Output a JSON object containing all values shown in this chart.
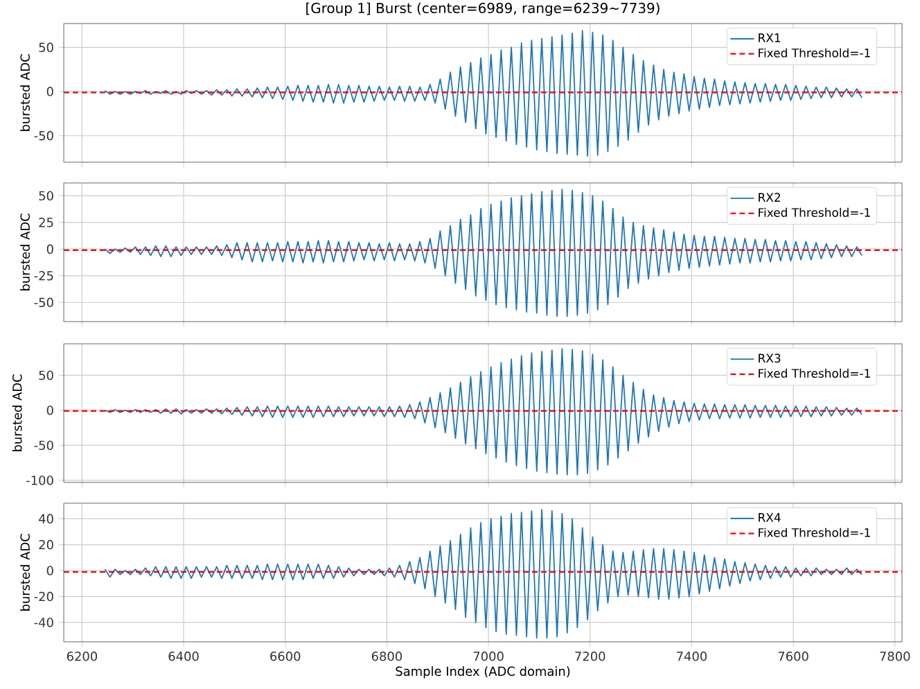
{
  "chart_data": [
    {
      "type": "line",
      "title": "[Group 1] Burst (center=6989, range=6239~7739)",
      "ylabel": "bursted ADC",
      "xlim": [
        6164,
        7814
      ],
      "ylim": [
        -80,
        77
      ],
      "xticks": [
        6200,
        6400,
        6600,
        6800,
        7000,
        7200,
        7400,
        7600,
        7800
      ],
      "yticks": [
        -50,
        0,
        50
      ],
      "tick_labels": "y",
      "grid": true,
      "legend": "top right",
      "ref_lines": [
        {
          "axis": "y",
          "value": -1,
          "label": "Fixed Threshold=-1",
          "color": "#ff0000",
          "line_style": "dashed"
        }
      ],
      "series": [
        {
          "name": "RX1",
          "color": "#1f77b4",
          "x": [
            6245,
            6255,
            6265,
            6275,
            6285,
            6295,
            6305,
            6315,
            6325,
            6335,
            6345,
            6355,
            6365,
            6375,
            6385,
            6395,
            6405,
            6415,
            6425,
            6435,
            6445,
            6455,
            6465,
            6475,
            6485,
            6495,
            6505,
            6515,
            6525,
            6535,
            6545,
            6555,
            6565,
            6575,
            6585,
            6595,
            6605,
            6615,
            6625,
            6635,
            6645,
            6655,
            6665,
            6675,
            6685,
            6695,
            6705,
            6715,
            6725,
            6735,
            6745,
            6755,
            6765,
            6775,
            6785,
            6795,
            6805,
            6815,
            6825,
            6835,
            6845,
            6855,
            6865,
            6875,
            6885,
            6895,
            6905,
            6915,
            6925,
            6935,
            6945,
            6955,
            6965,
            6975,
            6985,
            6995,
            7005,
            7015,
            7025,
            7035,
            7045,
            7055,
            7065,
            7075,
            7085,
            7095,
            7105,
            7115,
            7125,
            7135,
            7145,
            7155,
            7165,
            7175,
            7185,
            7195,
            7205,
            7215,
            7225,
            7235,
            7245,
            7255,
            7265,
            7275,
            7285,
            7295,
            7305,
            7315,
            7325,
            7335,
            7345,
            7355,
            7365,
            7375,
            7385,
            7395,
            7405,
            7415,
            7425,
            7435,
            7445,
            7455,
            7465,
            7475,
            7485,
            7495,
            7505,
            7515,
            7525,
            7535,
            7545,
            7555,
            7565,
            7575,
            7585,
            7595,
            7605,
            7615,
            7625,
            7635,
            7645,
            7655,
            7665,
            7675,
            7685,
            7695,
            7705,
            7715,
            7725,
            7735
          ],
          "values": [
            1,
            -3,
            0,
            -3,
            0,
            -3,
            0,
            -2,
            1,
            -3,
            0,
            -2,
            1,
            -3,
            0,
            -3,
            1,
            -2,
            1,
            -3,
            1,
            -4,
            2,
            -4,
            2,
            -5,
            3,
            -5,
            3,
            -6,
            4,
            -7,
            5,
            -8,
            5,
            -9,
            6,
            -10,
            7,
            -11,
            7,
            -12,
            7,
            -12,
            8,
            -13,
            8,
            -13,
            7,
            -12,
            7,
            -12,
            6,
            -11,
            6,
            -10,
            5,
            -10,
            6,
            -11,
            6,
            -11,
            5,
            -10,
            8,
            -13,
            14,
            -20,
            22,
            -28,
            28,
            -35,
            33,
            -42,
            38,
            -48,
            42,
            -52,
            47,
            -56,
            50,
            -60,
            55,
            -63,
            58,
            -66,
            60,
            -68,
            62,
            -70,
            64,
            -71,
            66,
            -72,
            69,
            -73,
            67,
            -72,
            64,
            -68,
            58,
            -62,
            50,
            -55,
            42,
            -46,
            35,
            -38,
            30,
            -32,
            25,
            -28,
            22,
            -25,
            20,
            -22,
            17,
            -20,
            15,
            -18,
            14,
            -16,
            12,
            -15,
            11,
            -14,
            10,
            -13,
            9,
            -12,
            9,
            -11,
            8,
            -10,
            8,
            -10,
            7,
            -9,
            6,
            -8,
            5,
            -7,
            5,
            -7,
            4,
            -6,
            3,
            -6,
            3,
            -7
          ]
        }
      ]
    },
    {
      "type": "line",
      "ylabel": "bursted ADC",
      "xlim": [
        6164,
        7814
      ],
      "ylim": [
        -68,
        62
      ],
      "xticks": [
        6200,
        6400,
        6600,
        6800,
        7000,
        7200,
        7400,
        7600,
        7800
      ],
      "yticks": [
        -50,
        -25,
        0,
        25,
        50
      ],
      "tick_labels": "y",
      "grid": true,
      "legend": "top right",
      "ref_lines": [
        {
          "axis": "y",
          "value": -1,
          "label": "Fixed Threshold=-1",
          "color": "#ff0000",
          "line_style": "dashed"
        }
      ],
      "series": [
        {
          "name": "RX2",
          "color": "#1f77b4",
          "x": [
            6245,
            6255,
            6265,
            6275,
            6285,
            6295,
            6305,
            6315,
            6325,
            6335,
            6345,
            6355,
            6365,
            6375,
            6385,
            6395,
            6405,
            6415,
            6425,
            6435,
            6445,
            6455,
            6465,
            6475,
            6485,
            6495,
            6505,
            6515,
            6525,
            6535,
            6545,
            6555,
            6565,
            6575,
            6585,
            6595,
            6605,
            6615,
            6625,
            6635,
            6645,
            6655,
            6665,
            6675,
            6685,
            6695,
            6705,
            6715,
            6725,
            6735,
            6745,
            6755,
            6765,
            6775,
            6785,
            6795,
            6805,
            6815,
            6825,
            6835,
            6845,
            6855,
            6865,
            6875,
            6885,
            6895,
            6905,
            6915,
            6925,
            6935,
            6945,
            6955,
            6965,
            6975,
            6985,
            6995,
            7005,
            7015,
            7025,
            7035,
            7045,
            7055,
            7065,
            7075,
            7085,
            7095,
            7105,
            7115,
            7125,
            7135,
            7145,
            7155,
            7165,
            7175,
            7185,
            7195,
            7205,
            7215,
            7225,
            7235,
            7245,
            7255,
            7265,
            7275,
            7285,
            7295,
            7305,
            7315,
            7325,
            7335,
            7345,
            7355,
            7365,
            7375,
            7385,
            7395,
            7405,
            7415,
            7425,
            7435,
            7445,
            7455,
            7465,
            7475,
            7485,
            7495,
            7505,
            7515,
            7525,
            7535,
            7545,
            7555,
            7565,
            7575,
            7585,
            7595,
            7605,
            7615,
            7625,
            7635,
            7645,
            7655,
            7665,
            7675,
            7685,
            7695,
            7705,
            7715,
            7725,
            7735
          ],
          "values": [
            0,
            -4,
            0,
            -3,
            1,
            -3,
            2,
            -5,
            2,
            -6,
            3,
            -7,
            3,
            -7,
            2,
            -6,
            2,
            -5,
            2,
            -5,
            2,
            -5,
            3,
            -6,
            4,
            -8,
            6,
            -10,
            6,
            -12,
            6,
            -12,
            6,
            -11,
            6,
            -12,
            7,
            -12,
            7,
            -13,
            7,
            -12,
            8,
            -13,
            8,
            -12,
            7,
            -12,
            7,
            -11,
            6,
            -10,
            6,
            -11,
            5,
            -10,
            6,
            -11,
            5,
            -10,
            5,
            -11,
            7,
            -13,
            10,
            -18,
            17,
            -25,
            22,
            -32,
            28,
            -38,
            32,
            -44,
            38,
            -48,
            42,
            -52,
            45,
            -55,
            48,
            -57,
            50,
            -59,
            52,
            -60,
            54,
            -62,
            55,
            -63,
            56,
            -63,
            55,
            -62,
            53,
            -60,
            50,
            -57,
            45,
            -52,
            38,
            -45,
            30,
            -37,
            25,
            -32,
            22,
            -28,
            20,
            -25,
            18,
            -22,
            16,
            -20,
            14,
            -18,
            13,
            -17,
            12,
            -16,
            12,
            -15,
            11,
            -14,
            10,
            -13,
            10,
            -13,
            9,
            -12,
            9,
            -12,
            8,
            -11,
            8,
            -11,
            7,
            -10,
            7,
            -10,
            6,
            -9,
            5,
            -8,
            4,
            -7,
            3,
            -7,
            2,
            -6
          ]
        }
      ]
    },
    {
      "type": "line",
      "ylabel": "bursted ADC",
      "xlim": [
        6164,
        7814
      ],
      "ylim": [
        -103,
        95
      ],
      "xticks": [
        6200,
        6400,
        6600,
        6800,
        7000,
        7200,
        7400,
        7600,
        7800
      ],
      "yticks": [
        -100,
        -50,
        0,
        50
      ],
      "tick_labels": "y",
      "grid": true,
      "legend": "top right",
      "ref_lines": [
        {
          "axis": "y",
          "value": -1,
          "label": "Fixed Threshold=-1",
          "color": "#ff0000",
          "line_style": "dashed"
        }
      ],
      "series": [
        {
          "name": "RX3",
          "color": "#1f77b4",
          "x": [
            6245,
            6255,
            6265,
            6275,
            6285,
            6295,
            6305,
            6315,
            6325,
            6335,
            6345,
            6355,
            6365,
            6375,
            6385,
            6395,
            6405,
            6415,
            6425,
            6435,
            6445,
            6455,
            6465,
            6475,
            6485,
            6495,
            6505,
            6515,
            6525,
            6535,
            6545,
            6555,
            6565,
            6575,
            6585,
            6595,
            6605,
            6615,
            6625,
            6635,
            6645,
            6655,
            6665,
            6675,
            6685,
            6695,
            6705,
            6715,
            6725,
            6735,
            6745,
            6755,
            6765,
            6775,
            6785,
            6795,
            6805,
            6815,
            6825,
            6835,
            6845,
            6855,
            6865,
            6875,
            6885,
            6895,
            6905,
            6915,
            6925,
            6935,
            6945,
            6955,
            6965,
            6975,
            6985,
            6995,
            7005,
            7015,
            7025,
            7035,
            7045,
            7055,
            7065,
            7075,
            7085,
            7095,
            7105,
            7115,
            7125,
            7135,
            7145,
            7155,
            7165,
            7175,
            7185,
            7195,
            7205,
            7215,
            7225,
            7235,
            7245,
            7255,
            7265,
            7275,
            7285,
            7295,
            7305,
            7315,
            7325,
            7335,
            7345,
            7355,
            7365,
            7375,
            7385,
            7395,
            7405,
            7415,
            7425,
            7435,
            7445,
            7455,
            7465,
            7475,
            7485,
            7495,
            7505,
            7515,
            7525,
            7535,
            7545,
            7555,
            7565,
            7575,
            7585,
            7595,
            7605,
            7615,
            7625,
            7635,
            7645,
            7655,
            7665,
            7675,
            7685,
            7695,
            7705,
            7715,
            7725,
            7735
          ],
          "values": [
            0,
            -3,
            1,
            -3,
            0,
            -3,
            1,
            -3,
            1,
            -3,
            1,
            -4,
            2,
            -4,
            2,
            -5,
            1,
            -4,
            1,
            -4,
            2,
            -4,
            2,
            -5,
            3,
            -6,
            4,
            -7,
            5,
            -8,
            5,
            -9,
            6,
            -10,
            6,
            -10,
            6,
            -10,
            6,
            -10,
            6,
            -10,
            6,
            -9,
            6,
            -9,
            5,
            -9,
            5,
            -8,
            5,
            -8,
            5,
            -8,
            5,
            -9,
            5,
            -9,
            6,
            -10,
            8,
            -12,
            12,
            -18,
            18,
            -25,
            25,
            -32,
            32,
            -40,
            40,
            -48,
            48,
            -55,
            55,
            -62,
            62,
            -68,
            68,
            -74,
            73,
            -79,
            78,
            -83,
            82,
            -87,
            84,
            -89,
            86,
            -91,
            88,
            -92,
            87,
            -92,
            85,
            -90,
            80,
            -85,
            72,
            -78,
            62,
            -68,
            50,
            -58,
            40,
            -47,
            30,
            -38,
            22,
            -30,
            18,
            -24,
            14,
            -19,
            12,
            -16,
            10,
            -14,
            9,
            -12,
            9,
            -12,
            8,
            -11,
            8,
            -11,
            8,
            -11,
            7,
            -10,
            7,
            -10,
            7,
            -10,
            6,
            -9,
            6,
            -9,
            6,
            -9,
            5,
            -8,
            5,
            -8,
            4,
            -7,
            3,
            -7,
            3,
            -6
          ]
        }
      ]
    },
    {
      "type": "line",
      "xlabel": "Sample Index (ADC domain)",
      "ylabel": "bursted ADC",
      "xlim": [
        6164,
        7814
      ],
      "ylim": [
        -55,
        52
      ],
      "xticks": [
        6200,
        6400,
        6600,
        6800,
        7000,
        7200,
        7400,
        7600,
        7800
      ],
      "yticks": [
        -40,
        -20,
        0,
        20,
        40
      ],
      "grid": true,
      "legend": "top right",
      "ref_lines": [
        {
          "axis": "y",
          "value": -1,
          "label": "Fixed Threshold=-1",
          "color": "#ff0000",
          "line_style": "dashed"
        }
      ],
      "series": [
        {
          "name": "RX4",
          "color": "#1f77b4",
          "x": [
            6245,
            6255,
            6265,
            6275,
            6285,
            6295,
            6305,
            6315,
            6325,
            6335,
            6345,
            6355,
            6365,
            6375,
            6385,
            6395,
            6405,
            6415,
            6425,
            6435,
            6445,
            6455,
            6465,
            6475,
            6485,
            6495,
            6505,
            6515,
            6525,
            6535,
            6545,
            6555,
            6565,
            6575,
            6585,
            6595,
            6605,
            6615,
            6625,
            6635,
            6645,
            6655,
            6665,
            6675,
            6685,
            6695,
            6705,
            6715,
            6725,
            6735,
            6745,
            6755,
            6765,
            6775,
            6785,
            6795,
            6805,
            6815,
            6825,
            6835,
            6845,
            6855,
            6865,
            6875,
            6885,
            6895,
            6905,
            6915,
            6925,
            6935,
            6945,
            6955,
            6965,
            6975,
            6985,
            6995,
            7005,
            7015,
            7025,
            7035,
            7045,
            7055,
            7065,
            7075,
            7085,
            7095,
            7105,
            7115,
            7125,
            7135,
            7145,
            7155,
            7165,
            7175,
            7185,
            7195,
            7205,
            7215,
            7225,
            7235,
            7245,
            7255,
            7265,
            7275,
            7285,
            7295,
            7305,
            7315,
            7325,
            7335,
            7345,
            7355,
            7365,
            7375,
            7385,
            7395,
            7405,
            7415,
            7425,
            7435,
            7445,
            7455,
            7465,
            7475,
            7485,
            7495,
            7505,
            7515,
            7525,
            7535,
            7545,
            7555,
            7565,
            7575,
            7585,
            7595,
            7605,
            7615,
            7625,
            7635,
            7645,
            7655,
            7665,
            7675,
            7685,
            7695,
            7705,
            7715,
            7725,
            7735
          ],
          "values": [
            1,
            -5,
            1,
            -3,
            0,
            -3,
            1,
            -3,
            2,
            -4,
            3,
            -5,
            3,
            -6,
            3,
            -6,
            3,
            -6,
            3,
            -5,
            3,
            -5,
            3,
            -6,
            4,
            -6,
            4,
            -6,
            4,
            -6,
            4,
            -7,
            5,
            -7,
            5,
            -7,
            5,
            -7,
            5,
            -7,
            5,
            -6,
            5,
            -6,
            4,
            -6,
            3,
            -5,
            2,
            -4,
            1,
            -3,
            1,
            -3,
            1,
            -4,
            2,
            -5,
            4,
            -7,
            7,
            -10,
            10,
            -14,
            15,
            -20,
            19,
            -25,
            23,
            -30,
            28,
            -36,
            33,
            -40,
            37,
            -44,
            40,
            -47,
            42,
            -49,
            44,
            -50,
            45,
            -51,
            46,
            -52,
            47,
            -52,
            46,
            -51,
            44,
            -48,
            40,
            -44,
            33,
            -38,
            26,
            -31,
            20,
            -25,
            15,
            -20,
            14,
            -19,
            15,
            -20,
            16,
            -21,
            17,
            -22,
            17,
            -22,
            16,
            -21,
            15,
            -20,
            14,
            -18,
            12,
            -16,
            10,
            -14,
            9,
            -12,
            7,
            -10,
            6,
            -8,
            5,
            -7,
            4,
            -6,
            3,
            -5,
            3,
            -5,
            2,
            -4,
            2,
            -4,
            2,
            -3,
            1,
            -3,
            1,
            -3,
            2,
            -3,
            1,
            -3
          ]
        }
      ]
    }
  ]
}
